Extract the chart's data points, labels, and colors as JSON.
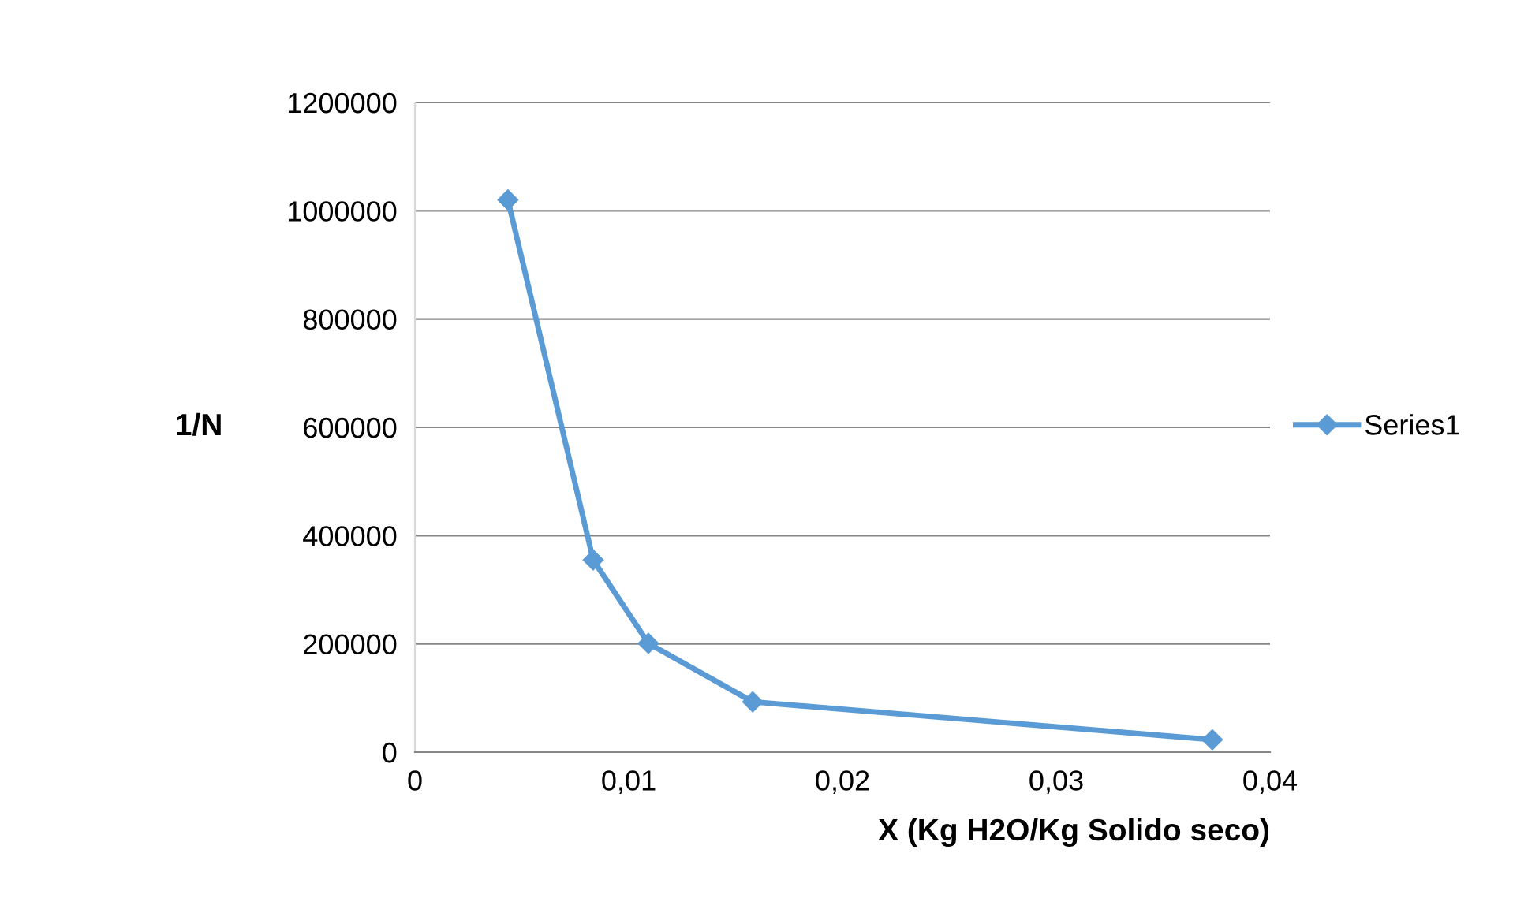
{
  "chart_data": {
    "type": "line",
    "xlabel": "X (Kg H2O/Kg Solido seco)",
    "ylabel": "1/N",
    "series": [
      {
        "name": "Series1",
        "color": "#5b9bd5",
        "x": [
          0.00435,
          0.00834,
          0.01092,
          0.0158,
          0.0373
        ],
        "values": [
          1020000,
          355000,
          201000,
          93000,
          23000
        ]
      }
    ],
    "xlim": [
      0,
      0.04
    ],
    "xticks": [
      0,
      {
        "value": 0.01,
        "label": "0,01"
      },
      {
        "value": 0.02,
        "label": "0,02"
      },
      {
        "value": 0.03,
        "label": "0,03"
      },
      {
        "value": 0.04,
        "label": "0,04"
      }
    ],
    "ylim": [
      0,
      1200000
    ],
    "yticks": [
      0,
      200000,
      400000,
      600000,
      800000,
      1000000,
      1200000
    ],
    "grid": "y",
    "legend": "right",
    "marker": "diamond",
    "line_style": "solid"
  }
}
